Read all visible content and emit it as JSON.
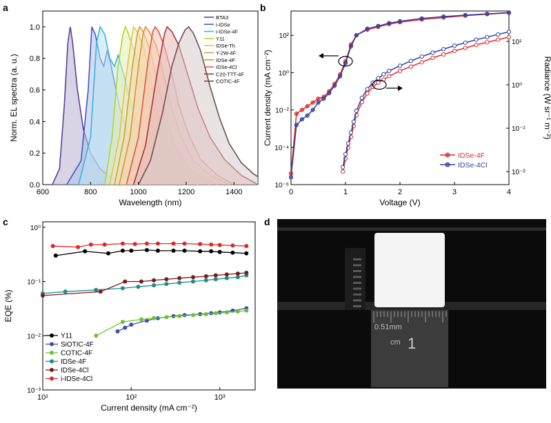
{
  "panels": {
    "a": {
      "letter": "a"
    },
    "b": {
      "letter": "b"
    },
    "c": {
      "letter": "c"
    },
    "d": {
      "letter": "d"
    }
  },
  "chart_data": [
    {
      "panel": "a",
      "type": "area",
      "xlabel": "Wavelength (nm)",
      "ylabel": "Norm. EL spectra (a. u.)",
      "xlim": [
        600,
        1500
      ],
      "ylim": [
        0,
        1.1
      ],
      "xticks": [
        600,
        800,
        1000,
        1200,
        1400
      ],
      "yticks": [
        "0.0",
        "0.2",
        "0.4",
        "0.6",
        "0.8",
        "1.0"
      ],
      "legend_position": "top-right",
      "series": [
        {
          "name": "BTA3",
          "color": "#5a3d94",
          "fill": "#b8b0cf",
          "points": [
            [
              640,
              0.0
            ],
            [
              670,
              0.1
            ],
            [
              690,
              0.5
            ],
            [
              705,
              0.9
            ],
            [
              715,
              1.0
            ],
            [
              725,
              0.9
            ],
            [
              745,
              0.6
            ],
            [
              770,
              0.35
            ],
            [
              800,
              0.2
            ],
            [
              840,
              0.1
            ],
            [
              880,
              0.05
            ],
            [
              930,
              0.02
            ],
            [
              1000,
              0.0
            ]
          ]
        },
        {
          "name": "i-IDSe",
          "color": "#3a58c8",
          "fill": "#b5c0ea",
          "points": [
            [
              700,
              0.0
            ],
            [
              760,
              0.15
            ],
            [
              790,
              0.6
            ],
            [
              805,
              1.0
            ],
            [
              820,
              0.95
            ],
            [
              840,
              0.8
            ],
            [
              855,
              0.75
            ],
            [
              870,
              0.85
            ],
            [
              885,
              0.76
            ],
            [
              920,
              0.5
            ],
            [
              960,
              0.3
            ],
            [
              1000,
              0.15
            ],
            [
              1050,
              0.07
            ],
            [
              1100,
              0.0
            ]
          ]
        },
        {
          "name": "i-IDSe-4F",
          "color": "#33b4dc",
          "fill": "#b8e3f2",
          "points": [
            [
              750,
              0.0
            ],
            [
              800,
              0.3
            ],
            [
              825,
              0.9
            ],
            [
              840,
              1.0
            ],
            [
              860,
              0.95
            ],
            [
              880,
              0.8
            ],
            [
              900,
              0.75
            ],
            [
              915,
              0.82
            ],
            [
              935,
              0.72
            ],
            [
              970,
              0.5
            ],
            [
              1010,
              0.3
            ],
            [
              1050,
              0.15
            ],
            [
              1090,
              0.08
            ],
            [
              1100,
              0.0
            ]
          ]
        },
        {
          "name": "Y11",
          "color": "#b6d428",
          "fill": "#e3efb5",
          "points": [
            [
              860,
              0.0
            ],
            [
              890,
              0.3
            ],
            [
              915,
              0.75
            ],
            [
              935,
              0.95
            ],
            [
              945,
              1.0
            ],
            [
              955,
              0.97
            ],
            [
              975,
              0.88
            ],
            [
              1000,
              0.78
            ],
            [
              1030,
              0.6
            ],
            [
              1060,
              0.38
            ],
            [
              1100,
              0.2
            ],
            [
              1150,
              0.09
            ],
            [
              1200,
              0.03
            ],
            [
              1250,
              0.0
            ]
          ]
        },
        {
          "name": "IDSe-Th",
          "color": "#e0c445",
          "fill": "#f1e6b6",
          "points": [
            [
              880,
              0.0
            ],
            [
              920,
              0.3
            ],
            [
              950,
              0.7
            ],
            [
              970,
              0.92
            ],
            [
              980,
              1.0
            ],
            [
              995,
              0.97
            ],
            [
              1020,
              0.88
            ],
            [
              1050,
              0.68
            ],
            [
              1080,
              0.45
            ],
            [
              1120,
              0.25
            ],
            [
              1170,
              0.12
            ],
            [
              1230,
              0.05
            ],
            [
              1300,
              0.0
            ]
          ]
        },
        {
          "name": "Y-2W-4F",
          "color": "#c9a23a",
          "fill": "#ecdcb0",
          "points": [
            [
              900,
              0.0
            ],
            [
              940,
              0.3
            ],
            [
              975,
              0.75
            ],
            [
              995,
              0.95
            ],
            [
              1005,
              1.0
            ],
            [
              1020,
              0.97
            ],
            [
              1050,
              0.85
            ],
            [
              1080,
              0.65
            ],
            [
              1110,
              0.45
            ],
            [
              1150,
              0.26
            ],
            [
              1200,
              0.12
            ],
            [
              1260,
              0.05
            ],
            [
              1330,
              0.0
            ]
          ]
        },
        {
          "name": "IDSe-4F",
          "color": "#e4902e",
          "fill": "#f4d4b0",
          "points": [
            [
              920,
              0.0
            ],
            [
              965,
              0.3
            ],
            [
              1000,
              0.75
            ],
            [
              1020,
              0.96
            ],
            [
              1030,
              1.0
            ],
            [
              1045,
              0.97
            ],
            [
              1075,
              0.88
            ],
            [
              1105,
              0.7
            ],
            [
              1140,
              0.48
            ],
            [
              1180,
              0.3
            ],
            [
              1230,
              0.15
            ],
            [
              1300,
              0.06
            ],
            [
              1380,
              0.0
            ]
          ]
        },
        {
          "name": "IDSe-4Cl",
          "color": "#e2583a",
          "fill": "#f3c4b6",
          "points": [
            [
              950,
              0.0
            ],
            [
              1000,
              0.3
            ],
            [
              1040,
              0.78
            ],
            [
              1060,
              0.97
            ],
            [
              1070,
              1.0
            ],
            [
              1085,
              0.97
            ],
            [
              1110,
              0.87
            ],
            [
              1140,
              0.7
            ],
            [
              1170,
              0.5
            ],
            [
              1210,
              0.32
            ],
            [
              1260,
              0.16
            ],
            [
              1330,
              0.06
            ],
            [
              1400,
              0.0
            ]
          ]
        },
        {
          "name": "C20-TTT-4F",
          "color": "#a33238",
          "fill": "#e6b9bb",
          "points": [
            [
              980,
              0.0
            ],
            [
              1030,
              0.25
            ],
            [
              1080,
              0.72
            ],
            [
              1110,
              0.96
            ],
            [
              1120,
              1.0
            ],
            [
              1140,
              0.97
            ],
            [
              1170,
              0.88
            ],
            [
              1210,
              0.68
            ],
            [
              1250,
              0.48
            ],
            [
              1300,
              0.3
            ],
            [
              1360,
              0.16
            ],
            [
              1430,
              0.06
            ],
            [
              1500,
              0.0
            ]
          ]
        },
        {
          "name": "COTIC-4F",
          "color": "#6a4e4e",
          "fill": "#d9cccc",
          "points": [
            [
              1000,
              0.0
            ],
            [
              1050,
              0.15
            ],
            [
              1100,
              0.45
            ],
            [
              1140,
              0.75
            ],
            [
              1170,
              0.9
            ],
            [
              1195,
              0.98
            ],
            [
              1210,
              1.0
            ],
            [
              1230,
              0.96
            ],
            [
              1260,
              0.85
            ],
            [
              1300,
              0.62
            ],
            [
              1340,
              0.42
            ],
            [
              1380,
              0.26
            ],
            [
              1430,
              0.14
            ],
            [
              1480,
              0.07
            ],
            [
              1500,
              0.05
            ]
          ]
        }
      ]
    },
    {
      "panel": "b",
      "type": "line",
      "xlabel": "Voltage (V)",
      "ylabel_left": "Current density (mA cm⁻²)",
      "ylabel_right": "Radiance (W sr⁻¹ m⁻²)",
      "xlim": [
        0,
        4
      ],
      "ylim_left_log10": [
        -6,
        3.3
      ],
      "ylim_right_log10": [
        -2.3,
        1.7
      ],
      "xticks": [
        "0",
        "1",
        "2",
        "3",
        "4"
      ],
      "yticks_left": [
        "10⁻⁶",
        "10⁻⁴",
        "10⁻²",
        "10⁰",
        "10²"
      ],
      "yticks_right": [
        "10⁻²",
        "10⁻¹",
        "10⁰",
        "10¹"
      ],
      "legend_position": "lower-right",
      "series": [
        {
          "name": "IDSe-4F",
          "color": "#e02727",
          "kind": "current",
          "x": [
            0.0,
            0.1,
            0.2,
            0.3,
            0.4,
            0.5,
            0.6,
            0.7,
            0.8,
            0.9,
            1.0,
            1.1,
            1.2,
            1.4,
            1.6,
            1.8,
            2.0,
            2.4,
            2.8,
            3.2,
            3.6,
            4.0
          ],
          "log10_y": [
            -5.4,
            -2.2,
            -2.0,
            -1.8,
            -1.6,
            -1.4,
            -1.3,
            -1.0,
            -0.6,
            -0.1,
            0.6,
            1.5,
            2.0,
            2.3,
            2.45,
            2.6,
            2.7,
            2.85,
            2.95,
            3.05,
            3.13,
            3.2
          ]
        },
        {
          "name": "IDSe-4Cl",
          "color": "#2e3f9e",
          "kind": "current",
          "x": [
            0.0,
            0.1,
            0.2,
            0.3,
            0.4,
            0.5,
            0.6,
            0.7,
            0.8,
            0.9,
            1.0,
            1.1,
            1.2,
            1.4,
            1.6,
            1.8,
            2.0,
            2.4,
            2.8,
            3.2,
            3.6,
            4.0
          ],
          "log10_y": [
            -5.6,
            -2.8,
            -2.5,
            -2.3,
            -2.0,
            -1.6,
            -1.4,
            -1.1,
            -0.7,
            -0.2,
            0.5,
            1.4,
            2.0,
            2.35,
            2.5,
            2.65,
            2.75,
            2.9,
            3.0,
            3.08,
            3.15,
            3.22
          ]
        },
        {
          "name": "IDSe-4F",
          "color": "#e02727",
          "kind": "radiance",
          "x": [
            0.95,
            1.0,
            1.05,
            1.1,
            1.15,
            1.2,
            1.3,
            1.4,
            1.5,
            1.6,
            1.7,
            1.8,
            2.0,
            2.2,
            2.4,
            2.6,
            2.8,
            3.0,
            3.2,
            3.4,
            3.6,
            3.8,
            4.0
          ],
          "log10_y": [
            -2.0,
            -1.7,
            -1.45,
            -1.2,
            -0.95,
            -0.7,
            -0.4,
            -0.2,
            -0.05,
            0.05,
            0.12,
            0.2,
            0.32,
            0.42,
            0.52,
            0.62,
            0.7,
            0.78,
            0.85,
            0.92,
            0.98,
            1.04,
            1.1
          ]
        },
        {
          "name": "IDSe-4Cl",
          "color": "#2e3f9e",
          "kind": "radiance",
          "x": [
            0.95,
            1.0,
            1.05,
            1.1,
            1.15,
            1.2,
            1.3,
            1.4,
            1.5,
            1.6,
            1.7,
            1.8,
            2.0,
            2.2,
            2.4,
            2.6,
            2.8,
            3.0,
            3.2,
            3.4,
            3.6,
            3.8,
            4.0
          ],
          "log10_y": [
            -1.9,
            -1.6,
            -1.35,
            -1.1,
            -0.85,
            -0.6,
            -0.3,
            -0.1,
            0.05,
            0.15,
            0.24,
            0.32,
            0.44,
            0.55,
            0.65,
            0.74,
            0.82,
            0.9,
            0.97,
            1.04,
            1.1,
            1.16,
            1.22
          ]
        }
      ]
    },
    {
      "panel": "c",
      "type": "scatter",
      "xlabel": "Current density (mA cm⁻²)",
      "ylabel": "EQE (%)",
      "xlim_log10": [
        1,
        3.4
      ],
      "ylim_log10": [
        -3,
        0.1
      ],
      "xticks": [
        "10¹",
        "10²",
        "10³"
      ],
      "yticks": [
        "10⁻³",
        "10⁻²",
        "10⁻¹",
        "10⁰"
      ],
      "legend_position": "lower-left",
      "series": [
        {
          "name": "Y11",
          "color": "#000000",
          "x": [
            14,
            30,
            55,
            80,
            100,
            150,
            200,
            300,
            400,
            600,
            800,
            1000,
            1400,
            2000
          ],
          "y": [
            0.3,
            0.36,
            0.33,
            0.37,
            0.37,
            0.38,
            0.37,
            0.37,
            0.37,
            0.36,
            0.36,
            0.35,
            0.34,
            0.33
          ]
        },
        {
          "name": "SiOTIC-4F",
          "color": "#3a4fb0",
          "x": [
            70,
            85,
            100,
            150,
            200,
            300,
            400,
            600,
            800,
            1000,
            1400,
            2000
          ],
          "y": [
            0.012,
            0.014,
            0.016,
            0.019,
            0.021,
            0.023,
            0.024,
            0.025,
            0.026,
            0.027,
            0.029,
            0.032
          ]
        },
        {
          "name": "COTIC-4F",
          "color": "#6ec230",
          "x": [
            40,
            80,
            130,
            180,
            250,
            350,
            500,
            700,
            900,
            1200,
            1600,
            2000
          ],
          "y": [
            0.01,
            0.018,
            0.02,
            0.021,
            0.022,
            0.023,
            0.024,
            0.025,
            0.026,
            0.027,
            0.028,
            0.029
          ]
        },
        {
          "name": "IDSe-4F",
          "color": "#1f8a8a",
          "x": [
            10,
            18,
            40,
            80,
            120,
            180,
            250,
            350,
            500,
            700,
            900,
            1200,
            1600,
            2000
          ],
          "y": [
            0.06,
            0.065,
            0.07,
            0.075,
            0.08,
            0.085,
            0.09,
            0.095,
            0.1,
            0.105,
            0.11,
            0.115,
            0.12,
            0.13
          ]
        },
        {
          "name": "IDSe-4Cl",
          "color": "#7a1b1b",
          "x": [
            10,
            45,
            85,
            130,
            180,
            250,
            350,
            500,
            700,
            900,
            1200,
            1600,
            2000
          ],
          "y": [
            0.055,
            0.065,
            0.1,
            0.1,
            0.105,
            0.11,
            0.115,
            0.12,
            0.125,
            0.13,
            0.135,
            0.14,
            0.145
          ]
        },
        {
          "name": "i-IDSe-4Cl",
          "color": "#e02727",
          "x": [
            13,
            25,
            35,
            50,
            80,
            110,
            150,
            200,
            300,
            400,
            600,
            800,
            1000,
            1400,
            2000
          ],
          "y": [
            0.45,
            0.43,
            0.48,
            0.48,
            0.5,
            0.49,
            0.5,
            0.5,
            0.5,
            0.5,
            0.49,
            0.48,
            0.47,
            0.46,
            0.45
          ]
        }
      ]
    },
    {
      "panel": "d",
      "type": "photo",
      "ruler_label": "cm",
      "ruler_numbers": [
        "0.51mm",
        "1"
      ]
    }
  ]
}
